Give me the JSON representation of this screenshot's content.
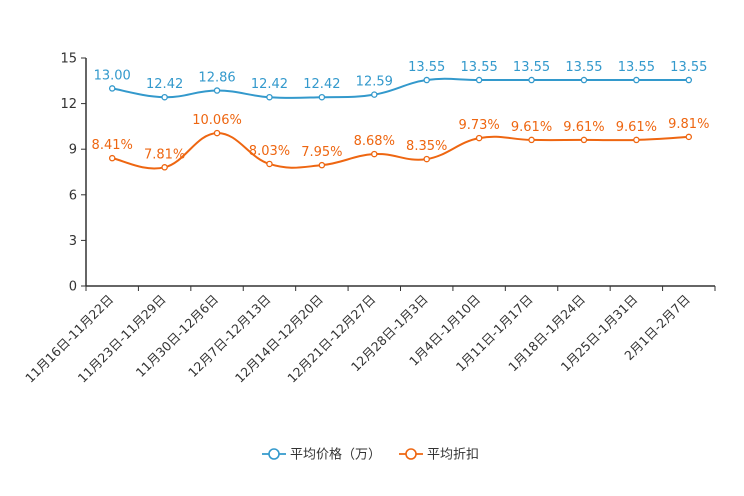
{
  "chart_data": {
    "type": "line",
    "categories": [
      "11月16日-11月22日",
      "11月23日-11月29日",
      "11月30日-12月6日",
      "12月7日-12月13日",
      "12月14日-12月20日",
      "12月21日-12月27日",
      "12月28日-1月3日",
      "1月4日-1月10日",
      "1月11日-1月17日",
      "1月18日-1月24日",
      "1月25日-1月31日",
      "2月1日-2月7日"
    ],
    "series": [
      {
        "name": "平均价格（万）",
        "color": "#3399cc",
        "values": [
          13.0,
          12.42,
          12.86,
          12.42,
          12.42,
          12.59,
          13.55,
          13.55,
          13.55,
          13.55,
          13.55,
          13.55
        ],
        "labels": [
          "13.00",
          "12.42",
          "12.86",
          "12.42",
          "12.42",
          "12.59",
          "13.55",
          "13.55",
          "13.55",
          "13.55",
          "13.55",
          "13.55"
        ]
      },
      {
        "name": "平均折扣",
        "color": "#ee6611",
        "values": [
          8.41,
          7.81,
          10.06,
          8.03,
          7.95,
          8.68,
          8.35,
          9.73,
          9.61,
          9.61,
          9.61,
          9.81
        ],
        "labels": [
          "8.41%",
          "7.81%",
          "10.06%",
          "8.03%",
          "7.95%",
          "8.68%",
          "8.35%",
          "9.73%",
          "9.61%",
          "9.61%",
          "9.61%",
          "9.81%"
        ]
      }
    ],
    "yticks": [
      0,
      3,
      6,
      9,
      12,
      15
    ],
    "ytick_labels": [
      "0",
      "3",
      "6",
      "9",
      "12",
      "15"
    ],
    "ylim": [
      0,
      15
    ],
    "title": "",
    "xlabel": "",
    "ylabel": "",
    "grid": false,
    "legend_position": "bottom-center"
  }
}
